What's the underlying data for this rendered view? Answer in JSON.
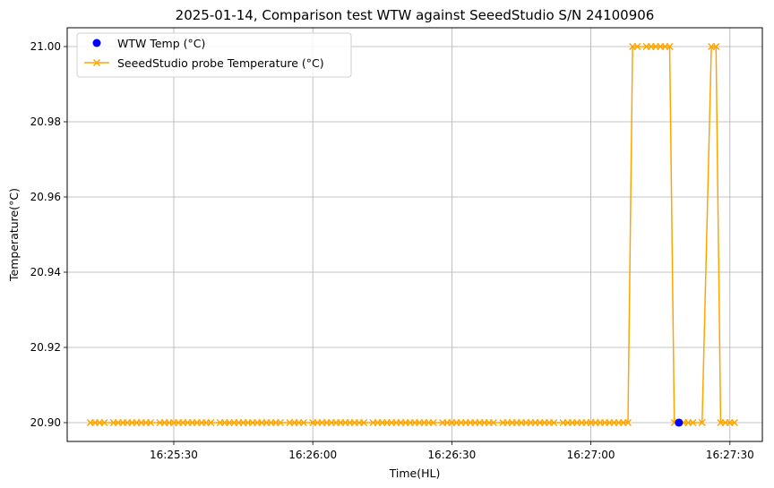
{
  "chart_data": {
    "type": "line",
    "title": "2025-01-14, Comparison test WTW against SeeedStudio S/N 24100906",
    "xlabel": "Time(HL)",
    "ylabel": "Temperature(°C)",
    "x_axis_type": "time",
    "xlim": [
      "16:25:07",
      "16:27:37"
    ],
    "ylim": [
      20.895,
      21.005
    ],
    "x_ticks": [
      "16:25:30",
      "16:26:00",
      "16:26:30",
      "16:27:00",
      "16:27:30"
    ],
    "y_ticks": [
      "20.90",
      "20.92",
      "20.94",
      "20.96",
      "20.98",
      "21.00"
    ],
    "grid": true,
    "legend_position": "upper-left",
    "series": [
      {
        "name": "WTW Temp (°C)",
        "kind": "scatter",
        "color": "#0000ff",
        "marker": "circle",
        "points": [
          {
            "x": "16:27:19",
            "y": 20.9
          }
        ]
      },
      {
        "name": "SeeedStudio probe Temperature (°C)",
        "kind": "line",
        "color": "#ffa500",
        "marker": "x",
        "points": [
          {
            "x": "16:25:12",
            "y": 20.9
          },
          {
            "x": "16:25:13",
            "y": 20.9
          },
          {
            "x": "16:25:14",
            "y": 20.9
          },
          {
            "x": "16:25:15",
            "y": 20.9
          },
          {
            "x": "16:25:17",
            "y": 20.9
          },
          {
            "x": "16:25:18",
            "y": 20.9
          },
          {
            "x": "16:25:19",
            "y": 20.9
          },
          {
            "x": "16:25:20",
            "y": 20.9
          },
          {
            "x": "16:25:21",
            "y": 20.9
          },
          {
            "x": "16:25:22",
            "y": 20.9
          },
          {
            "x": "16:25:23",
            "y": 20.9
          },
          {
            "x": "16:25:24",
            "y": 20.9
          },
          {
            "x": "16:25:25",
            "y": 20.9
          },
          {
            "x": "16:25:27",
            "y": 20.9
          },
          {
            "x": "16:25:28",
            "y": 20.9
          },
          {
            "x": "16:25:29",
            "y": 20.9
          },
          {
            "x": "16:25:30",
            "y": 20.9
          },
          {
            "x": "16:25:31",
            "y": 20.9
          },
          {
            "x": "16:25:32",
            "y": 20.9
          },
          {
            "x": "16:25:33",
            "y": 20.9
          },
          {
            "x": "16:25:34",
            "y": 20.9
          },
          {
            "x": "16:25:35",
            "y": 20.9
          },
          {
            "x": "16:25:36",
            "y": 20.9
          },
          {
            "x": "16:25:37",
            "y": 20.9
          },
          {
            "x": "16:25:38",
            "y": 20.9
          },
          {
            "x": "16:25:40",
            "y": 20.9
          },
          {
            "x": "16:25:41",
            "y": 20.9
          },
          {
            "x": "16:25:42",
            "y": 20.9
          },
          {
            "x": "16:25:43",
            "y": 20.9
          },
          {
            "x": "16:25:44",
            "y": 20.9
          },
          {
            "x": "16:25:45",
            "y": 20.9
          },
          {
            "x": "16:25:46",
            "y": 20.9
          },
          {
            "x": "16:25:47",
            "y": 20.9
          },
          {
            "x": "16:25:48",
            "y": 20.9
          },
          {
            "x": "16:25:49",
            "y": 20.9
          },
          {
            "x": "16:25:50",
            "y": 20.9
          },
          {
            "x": "16:25:51",
            "y": 20.9
          },
          {
            "x": "16:25:52",
            "y": 20.9
          },
          {
            "x": "16:25:53",
            "y": 20.9
          },
          {
            "x": "16:25:55",
            "y": 20.9
          },
          {
            "x": "16:25:56",
            "y": 20.9
          },
          {
            "x": "16:25:57",
            "y": 20.9
          },
          {
            "x": "16:25:58",
            "y": 20.9
          },
          {
            "x": "16:26:00",
            "y": 20.9
          },
          {
            "x": "16:26:01",
            "y": 20.9
          },
          {
            "x": "16:26:02",
            "y": 20.9
          },
          {
            "x": "16:26:03",
            "y": 20.9
          },
          {
            "x": "16:26:04",
            "y": 20.9
          },
          {
            "x": "16:26:05",
            "y": 20.9
          },
          {
            "x": "16:26:06",
            "y": 20.9
          },
          {
            "x": "16:26:07",
            "y": 20.9
          },
          {
            "x": "16:26:08",
            "y": 20.9
          },
          {
            "x": "16:26:09",
            "y": 20.9
          },
          {
            "x": "16:26:10",
            "y": 20.9
          },
          {
            "x": "16:26:11",
            "y": 20.9
          },
          {
            "x": "16:26:13",
            "y": 20.9
          },
          {
            "x": "16:26:14",
            "y": 20.9
          },
          {
            "x": "16:26:15",
            "y": 20.9
          },
          {
            "x": "16:26:16",
            "y": 20.9
          },
          {
            "x": "16:26:17",
            "y": 20.9
          },
          {
            "x": "16:26:18",
            "y": 20.9
          },
          {
            "x": "16:26:19",
            "y": 20.9
          },
          {
            "x": "16:26:20",
            "y": 20.9
          },
          {
            "x": "16:26:21",
            "y": 20.9
          },
          {
            "x": "16:26:22",
            "y": 20.9
          },
          {
            "x": "16:26:23",
            "y": 20.9
          },
          {
            "x": "16:26:24",
            "y": 20.9
          },
          {
            "x": "16:26:25",
            "y": 20.9
          },
          {
            "x": "16:26:26",
            "y": 20.9
          },
          {
            "x": "16:26:28",
            "y": 20.9
          },
          {
            "x": "16:26:29",
            "y": 20.9
          },
          {
            "x": "16:26:30",
            "y": 20.9
          },
          {
            "x": "16:26:31",
            "y": 20.9
          },
          {
            "x": "16:26:32",
            "y": 20.9
          },
          {
            "x": "16:26:33",
            "y": 20.9
          },
          {
            "x": "16:26:34",
            "y": 20.9
          },
          {
            "x": "16:26:35",
            "y": 20.9
          },
          {
            "x": "16:26:36",
            "y": 20.9
          },
          {
            "x": "16:26:37",
            "y": 20.9
          },
          {
            "x": "16:26:38",
            "y": 20.9
          },
          {
            "x": "16:26:39",
            "y": 20.9
          },
          {
            "x": "16:26:41",
            "y": 20.9
          },
          {
            "x": "16:26:42",
            "y": 20.9
          },
          {
            "x": "16:26:43",
            "y": 20.9
          },
          {
            "x": "16:26:44",
            "y": 20.9
          },
          {
            "x": "16:26:45",
            "y": 20.9
          },
          {
            "x": "16:26:46",
            "y": 20.9
          },
          {
            "x": "16:26:47",
            "y": 20.9
          },
          {
            "x": "16:26:48",
            "y": 20.9
          },
          {
            "x": "16:26:49",
            "y": 20.9
          },
          {
            "x": "16:26:50",
            "y": 20.9
          },
          {
            "x": "16:26:51",
            "y": 20.9
          },
          {
            "x": "16:26:52",
            "y": 20.9
          },
          {
            "x": "16:26:54",
            "y": 20.9
          },
          {
            "x": "16:26:55",
            "y": 20.9
          },
          {
            "x": "16:26:56",
            "y": 20.9
          },
          {
            "x": "16:26:57",
            "y": 20.9
          },
          {
            "x": "16:26:58",
            "y": 20.9
          },
          {
            "x": "16:26:59",
            "y": 20.9
          },
          {
            "x": "16:27:00",
            "y": 20.9
          },
          {
            "x": "16:27:01",
            "y": 20.9
          },
          {
            "x": "16:27:02",
            "y": 20.9
          },
          {
            "x": "16:27:03",
            "y": 20.9
          },
          {
            "x": "16:27:04",
            "y": 20.9
          },
          {
            "x": "16:27:05",
            "y": 20.9
          },
          {
            "x": "16:27:06",
            "y": 20.9
          },
          {
            "x": "16:27:07",
            "y": 20.9
          },
          {
            "x": "16:27:08",
            "y": 20.9
          },
          {
            "x": "16:27:09",
            "y": 21.0
          },
          {
            "x": "16:27:10",
            "y": 21.0
          },
          {
            "x": "16:27:12",
            "y": 21.0
          },
          {
            "x": "16:27:13",
            "y": 21.0
          },
          {
            "x": "16:27:14",
            "y": 21.0
          },
          {
            "x": "16:27:15",
            "y": 21.0
          },
          {
            "x": "16:27:16",
            "y": 21.0
          },
          {
            "x": "16:27:17",
            "y": 21.0
          },
          {
            "x": "16:27:18",
            "y": 20.9
          },
          {
            "x": "16:27:19",
            "y": 20.9
          },
          {
            "x": "16:27:20",
            "y": 20.9
          },
          {
            "x": "16:27:21",
            "y": 20.9
          },
          {
            "x": "16:27:22",
            "y": 20.9
          },
          {
            "x": "16:27:24",
            "y": 20.9
          },
          {
            "x": "16:27:26",
            "y": 21.0
          },
          {
            "x": "16:27:27",
            "y": 21.0
          },
          {
            "x": "16:27:28",
            "y": 20.9
          },
          {
            "x": "16:27:29",
            "y": 20.9
          },
          {
            "x": "16:27:30",
            "y": 20.9
          },
          {
            "x": "16:27:31",
            "y": 20.9
          }
        ]
      }
    ]
  }
}
